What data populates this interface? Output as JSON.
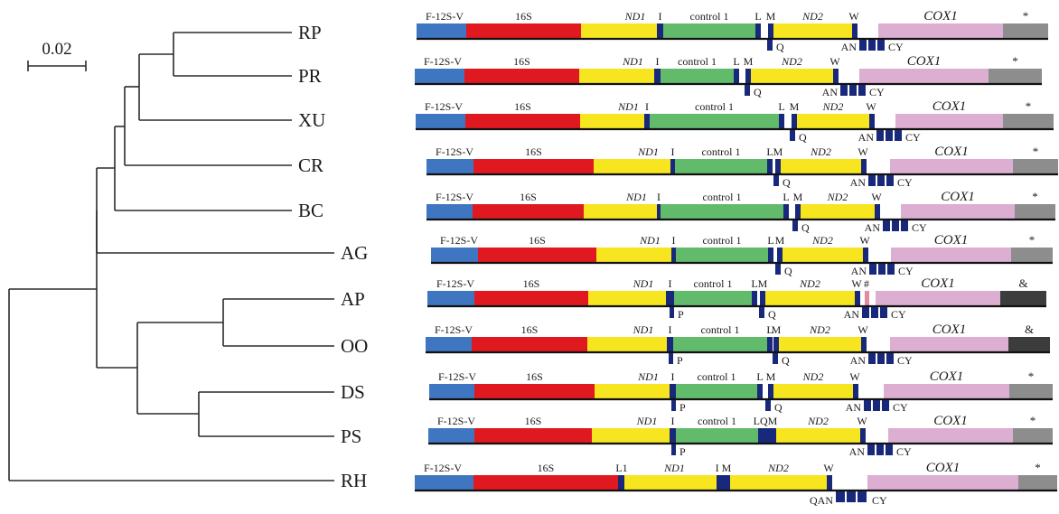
{
  "tree": {
    "scale_bar": {
      "label": "0.02",
      "value": 0.02
    },
    "taxa": [
      "RP",
      "PR",
      "XU",
      "CR",
      "BC",
      "AG",
      "AP",
      "OO",
      "DS",
      "PS",
      "RH"
    ]
  },
  "colors": {
    "F-12S-V": "#3f76c2",
    "16S": "#e0181f",
    "ND1": "#f6e51f",
    "control 1": "#62bb6b",
    "ND2": "#f6e51f",
    "COX1": "#dcaed2",
    "trna": "#18287a",
    "star_end": "#8d8d8d",
    "amp_end": "#3c3c3c",
    "hash_trna": "#e38aa0",
    "baseline": "#111111"
  },
  "labels": {
    "f12sv": "F-12S-V",
    "s16": "16S",
    "nd1": "ND1",
    "control": "control 1",
    "nd2": "ND2",
    "cox1": "COX1",
    "I": "I",
    "L": "L",
    "M": "M",
    "W": "W",
    "L1": "L1",
    "IM": "I M",
    "P": "P",
    "Q": "Q",
    "LQM": "LQM",
    "AN": "AN",
    "CY": "CY",
    "QAN": "QAN",
    "hash": "#",
    "star": "*",
    "amp": "&"
  },
  "gene_orders": [
    {
      "taxon": "RP",
      "pattern": "standard",
      "end_marker": "*"
    },
    {
      "taxon": "PR",
      "pattern": "standard",
      "end_marker": "*"
    },
    {
      "taxon": "XU",
      "pattern": "standard",
      "end_marker": "*"
    },
    {
      "taxon": "CR",
      "pattern": "standard",
      "end_marker": "*"
    },
    {
      "taxon": "BC",
      "pattern": "standard",
      "end_marker": "*"
    },
    {
      "taxon": "AG",
      "pattern": "standard",
      "end_marker": "*"
    },
    {
      "taxon": "AP",
      "pattern": "P before control 1; # tRNA after W",
      "end_marker": "&"
    },
    {
      "taxon": "OO",
      "pattern": "P before control 1",
      "end_marker": "&"
    },
    {
      "taxon": "DS",
      "pattern": "P before control 1",
      "end_marker": "*"
    },
    {
      "taxon": "PS",
      "pattern": "P before control 1; Q between L and M",
      "end_marker": "*"
    },
    {
      "taxon": "RH",
      "pattern": "no control 1; L1 before ND1; QAN CY after W",
      "end_marker": "*"
    }
  ]
}
